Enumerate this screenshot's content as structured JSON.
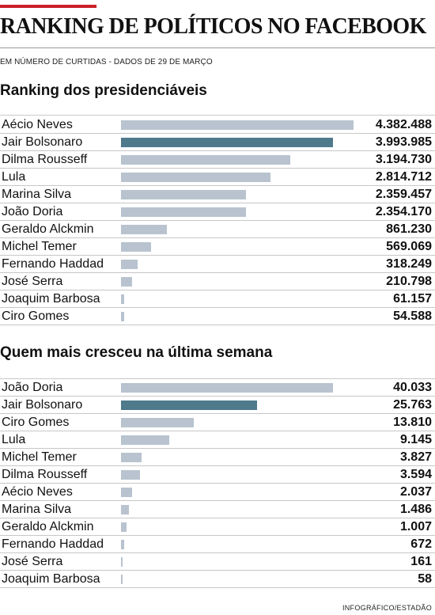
{
  "header": {
    "title": "RANKING DE POLÍTICOS NO FACEBOOK",
    "subtitle": "EM NÚMERO DE CURTIDAS - DADOS DE 29 DE MARÇO",
    "accent_color": "#cc2027"
  },
  "colors": {
    "bar": "#b8c3cf",
    "bar_highlight": "#4f7a8c"
  },
  "credit": "INFOGRÁFICO/ESTADÃO",
  "chart_data": [
    {
      "type": "bar",
      "orientation": "horizontal",
      "title": "Ranking dos presidenciáveis",
      "highlight": "Jair Bolsonaro",
      "rows": [
        {
          "name": "Aécio Neves",
          "value": 4382488,
          "label": "4.382.488"
        },
        {
          "name": "Jair Bolsonaro",
          "value": 3993985,
          "label": "3.993.985"
        },
        {
          "name": "Dilma Rousseff",
          "value": 3194730,
          "label": "3.194.730"
        },
        {
          "name": "Lula",
          "value": 2814712,
          "label": "2.814.712"
        },
        {
          "name": "Marina Silva",
          "value": 2359457,
          "label": "2.359.457"
        },
        {
          "name": "João Doria",
          "value": 2354170,
          "label": "2.354.170"
        },
        {
          "name": "Geraldo Alckmin",
          "value": 861230,
          "label": "861.230"
        },
        {
          "name": "Michel Temer",
          "value": 569069,
          "label": "569.069"
        },
        {
          "name": "Fernando Haddad",
          "value": 318249,
          "label": "318.249"
        },
        {
          "name": "José Serra",
          "value": 210798,
          "label": "210.798"
        },
        {
          "name": "Joaquim Barbosa",
          "value": 61157,
          "label": "61.157"
        },
        {
          "name": "Ciro Gomes",
          "value": 54588,
          "label": "54.588"
        }
      ]
    },
    {
      "type": "bar",
      "orientation": "horizontal",
      "title": "Quem mais cresceu na última semana",
      "highlight": "Jair Bolsonaro",
      "rows": [
        {
          "name": "João Doria",
          "value": 40033,
          "label": "40.033"
        },
        {
          "name": "Jair Bolsonaro",
          "value": 25763,
          "label": "25.763"
        },
        {
          "name": "Ciro Gomes",
          "value": 13810,
          "label": "13.810"
        },
        {
          "name": "Lula",
          "value": 9145,
          "label": "9.145"
        },
        {
          "name": "Michel Temer",
          "value": 3827,
          "label": "3.827"
        },
        {
          "name": "Dilma Rousseff",
          "value": 3594,
          "label": "3.594"
        },
        {
          "name": "Aécio Neves",
          "value": 2037,
          "label": "2.037"
        },
        {
          "name": "Marina Silva",
          "value": 1486,
          "label": "1.486"
        },
        {
          "name": "Geraldo Alckmin",
          "value": 1007,
          "label": "1.007"
        },
        {
          "name": "Fernando Haddad",
          "value": 672,
          "label": "672"
        },
        {
          "name": "José Serra",
          "value": 161,
          "label": "161"
        },
        {
          "name": "Joaquim Barbosa",
          "value": 58,
          "label": "58"
        }
      ]
    }
  ]
}
